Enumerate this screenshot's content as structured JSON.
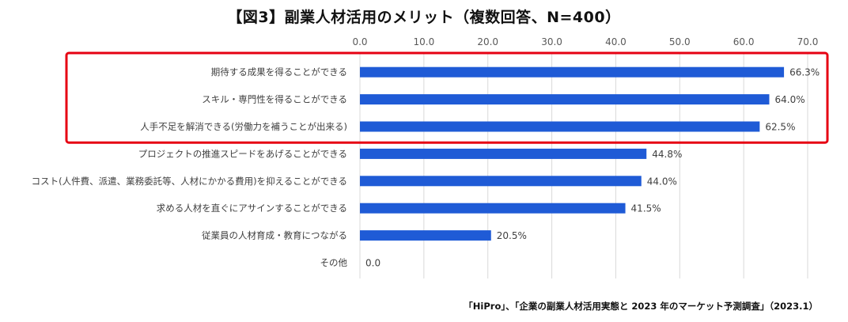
{
  "chart_data": {
    "type": "bar",
    "orientation": "horizontal",
    "title": "【図3】副業人材活用のメリット（複数回答、N=400）",
    "categories": [
      "期待する成果を得ることができる",
      "スキル・専門性を得ることができる",
      "人手不足を解消できる(労働力を補うことが出来る)",
      "プロジェクトの推進スピードをあげることができる",
      "コスト(人件費、派遣、業務委託等、人材にかかる費用)を抑えることができる",
      "求める人材を直ぐにアサインすることができる",
      "従業員の人材育成・教育につながる",
      "その他"
    ],
    "values": [
      66.3,
      64.0,
      62.5,
      44.8,
      44.0,
      41.5,
      20.5,
      0.0
    ],
    "value_labels": [
      "66.3%",
      "64.0%",
      "62.5%",
      "44.8%",
      "44.0%",
      "41.5%",
      "20.5%",
      "0.0"
    ],
    "x_ticks": [
      "0.0",
      "10.0",
      "20.0",
      "30.0",
      "40.0",
      "50.0",
      "60.0",
      "70.0"
    ],
    "xlim": [
      0,
      70
    ],
    "x_axis_position": "top",
    "grid": true,
    "highlighted_categories": [
      0,
      1,
      2
    ],
    "bar_color": "#1f5bd6",
    "highlight_color": "#e60012",
    "source": "「HiPro」、「企業の副業人材活用実態と 2023 年のマーケット予測調査」（2023.1）"
  }
}
